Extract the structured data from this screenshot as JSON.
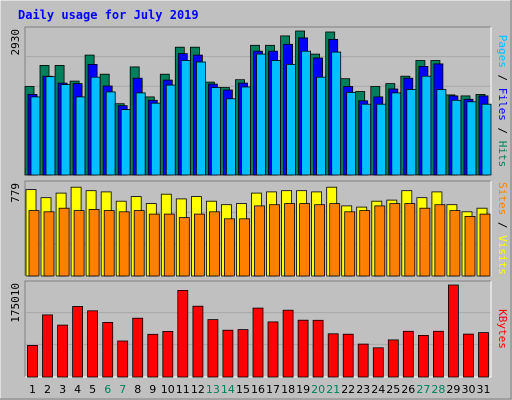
{
  "chart_data": {
    "type": "bar",
    "title": "Daily usage for July 2019",
    "colors": {
      "background": "#c0c0c0",
      "plot": "#c0c0c0",
      "title": "#0000ff",
      "hits": "#00805c",
      "files": "#0000ff",
      "pages": "#00c0ff",
      "visits": "#ffff00",
      "sites": "#ff8000",
      "kbytes": "#ff0000",
      "weekend_label": "#00805c",
      "weekday_label": "#000000"
    },
    "days": [
      "1",
      "2",
      "3",
      "4",
      "5",
      "6",
      "7",
      "8",
      "9",
      "10",
      "11",
      "12",
      "13",
      "14",
      "15",
      "16",
      "17",
      "18",
      "19",
      "20",
      "21",
      "22",
      "23",
      "24",
      "25",
      "26",
      "27",
      "28",
      "29",
      "30",
      "31"
    ],
    "weekend_days": [
      "6",
      "7",
      "13",
      "14",
      "20",
      "21",
      "27",
      "28"
    ],
    "panels": [
      {
        "name": "Hits/Files/Pages",
        "label_parts": [
          {
            "text": "Pages",
            "color": "#00c0ff"
          },
          {
            "text": " / ",
            "color": "#000000"
          },
          {
            "text": "Files",
            "color": "#0000ff"
          },
          {
            "text": " / ",
            "color": "#000000"
          },
          {
            "text": "Hits",
            "color": "#00805c"
          }
        ],
        "max_label": "2930",
        "ymax": 2930,
        "series": [
          {
            "name": "Hits",
            "values": [
              1800,
              2230,
              2230,
              1910,
              2440,
              2050,
              1450,
              2200,
              1590,
              2050,
              2600,
              2600,
              1890,
              1780,
              1940,
              2640,
              2640,
              2830,
              2930,
              2460,
              2910,
              1960,
              1700,
              1800,
              1860,
              2010,
              2330,
              2330,
              1630,
              1610,
              1640
            ]
          },
          {
            "name": "Files",
            "values": [
              1640,
              2010,
              1870,
              1860,
              2250,
              1810,
              1410,
              1970,
              1520,
              1930,
              2470,
              2440,
              1850,
              1730,
              1870,
              2520,
              2520,
              2660,
              2790,
              2380,
              2760,
              1800,
              1510,
              1590,
              1750,
              1970,
              2210,
              2260,
              1610,
              1540,
              1610
            ]
          },
          {
            "name": "Pages",
            "values": [
              1590,
              2000,
              1840,
              1590,
              1990,
              1690,
              1330,
              1670,
              1460,
              1830,
              2330,
              2300,
              1780,
              1550,
              1790,
              2460,
              2330,
              2250,
              2520,
              1990,
              2500,
              1680,
              1440,
              1440,
              1670,
              1740,
              2010,
              1740,
              1520,
              1490,
              1440
            ]
          }
        ]
      },
      {
        "name": "Visits/Sites",
        "label_parts": [
          {
            "text": "Sites",
            "color": "#ff8000"
          },
          {
            "text": " / ",
            "color": "#000000"
          },
          {
            "text": "Visits",
            "color": "#ffff00"
          }
        ],
        "max_label": "779",
        "ymax": 779,
        "series": [
          {
            "name": "Visits",
            "values": [
              740,
              670,
              710,
              760,
              730,
              720,
              640,
              680,
              620,
              700,
              660,
              680,
              640,
              610,
              620,
              710,
              720,
              730,
              730,
              720,
              760,
              600,
              590,
              640,
              650,
              730,
              670,
              720,
              610,
              550,
              580
            ]
          },
          {
            "name": "Sites",
            "values": [
              560,
              550,
              580,
              560,
              570,
              560,
              550,
              560,
              530,
              530,
              500,
              530,
              550,
              490,
              490,
              600,
              610,
              620,
              620,
              610,
              620,
              550,
              560,
              600,
              620,
              620,
              580,
              610,
              560,
              510,
              530
            ]
          }
        ]
      },
      {
        "name": "KBytes",
        "label_parts": [
          {
            "text": "KBytes",
            "color": "#ff0000"
          }
        ],
        "max_label": "175010",
        "ymax": 175010,
        "series": [
          {
            "name": "KBytes",
            "values": [
              60100,
              118100,
              98700,
              134300,
              126000,
              103900,
              68400,
              111800,
              81200,
              86700,
              164700,
              134700,
              109100,
              89000,
              90200,
              131000,
              104900,
              127100,
              108000,
              107800,
              82100,
              81500,
              62500,
              55600,
              70600,
              87000,
              79200,
              87000,
              175010,
              81600,
              84500
            ]
          }
        ]
      }
    ]
  }
}
